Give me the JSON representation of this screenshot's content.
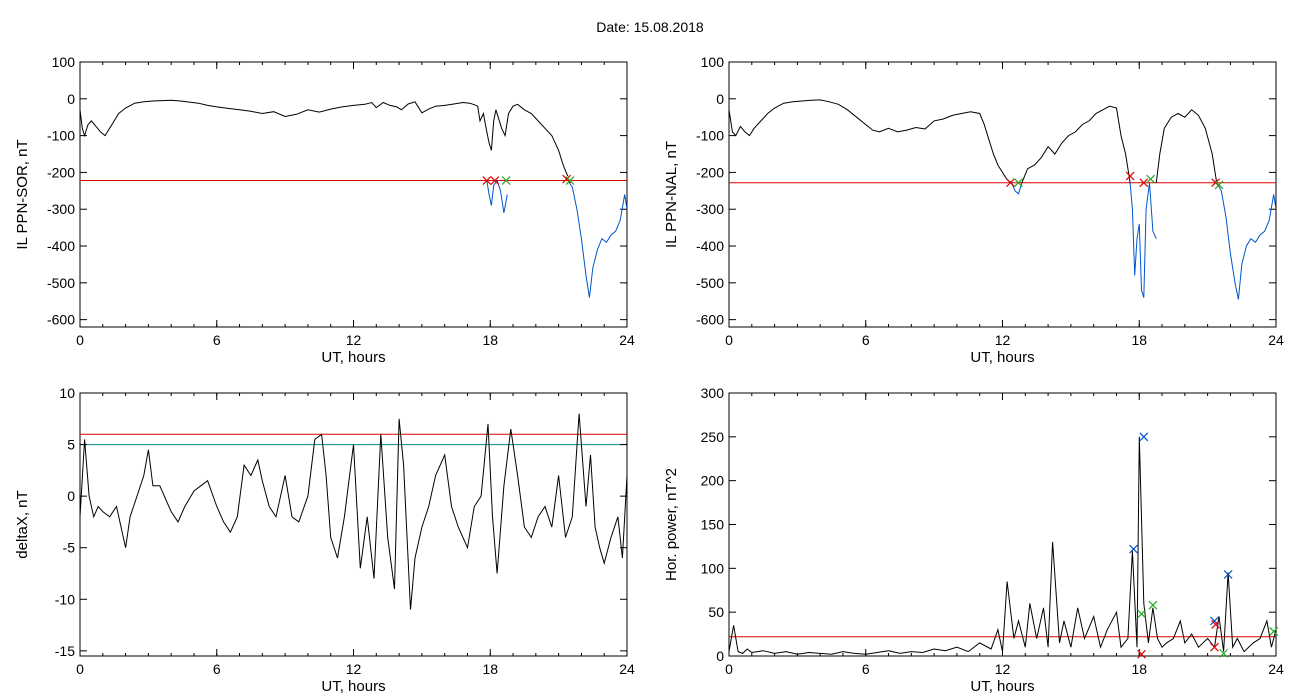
{
  "page": {
    "date_label": "Date:  15.08.2018"
  },
  "colors": {
    "trace": "#000000",
    "threshold": "#dd0000",
    "cyan_line": "#008b8b",
    "blue": "#0055cc",
    "green": "#22aa22",
    "red_mark": "#dd0000"
  },
  "chart_data": [
    {
      "id": "il-ppn-sor",
      "type": "line",
      "title": "",
      "xlabel": "UT, hours",
      "ylabel": "IL PPN-SOR, nT",
      "xlim": [
        0,
        24
      ],
      "ylim": [
        -620,
        100
      ],
      "xticks": [
        0,
        6,
        12,
        18,
        24
      ],
      "yticks": [
        100,
        0,
        -100,
        -200,
        -300,
        -400,
        -500,
        -600
      ],
      "grid": false,
      "thresholds": [
        {
          "value": -222,
          "color": "#dd0000"
        }
      ],
      "series": [
        {
          "color": "#000000",
          "x": [
            0,
            0.1,
            0.2,
            0.35,
            0.5,
            0.7,
            0.9,
            1.1,
            1.3,
            1.5,
            1.7,
            2.0,
            2.4,
            2.8,
            3.2,
            3.6,
            4.0,
            4.4,
            4.8,
            5.2,
            5.6,
            6.0,
            6.5,
            7.0,
            7.5,
            8.0,
            8.5,
            9.0,
            9.5,
            10.0,
            10.5,
            11.0,
            11.5,
            12.0,
            12.5,
            12.8,
            13.0,
            13.3,
            13.6,
            13.9,
            14.1,
            14.4,
            14.7,
            15.0,
            15.3,
            15.6,
            16.0,
            16.4,
            16.8,
            17.1,
            17.3,
            17.45,
            17.55,
            17.7,
            17.85,
            17.95,
            18.05,
            18.15,
            18.25,
            18.35,
            18.5,
            18.65,
            18.8,
            19.0,
            19.2,
            19.5,
            19.8,
            20.1,
            20.4,
            20.7,
            21.0,
            21.2,
            21.4
          ],
          "y": [
            -30,
            -80,
            -100,
            -70,
            -60,
            -75,
            -90,
            -100,
            -80,
            -60,
            -40,
            -25,
            -12,
            -8,
            -6,
            -5,
            -4,
            -6,
            -9,
            -12,
            -18,
            -22,
            -26,
            -30,
            -34,
            -40,
            -35,
            -48,
            -42,
            -30,
            -36,
            -28,
            -22,
            -18,
            -15,
            -10,
            -24,
            -10,
            -18,
            -22,
            -30,
            -14,
            -8,
            -38,
            -28,
            -20,
            -18,
            -14,
            -10,
            -12,
            -16,
            -20,
            -60,
            -40,
            -90,
            -120,
            -140,
            -60,
            -30,
            -50,
            -80,
            -100,
            -40,
            -20,
            -15,
            -30,
            -40,
            -60,
            -80,
            -100,
            -140,
            -180,
            -210
          ]
        },
        {
          "color": "#0055cc",
          "x": [
            17.85,
            17.95,
            18.05,
            18.15,
            18.3,
            18.45,
            18.6,
            18.75
          ],
          "y": [
            -222,
            -260,
            -290,
            -235,
            -222,
            -250,
            -310,
            -260
          ]
        },
        {
          "color": "#0055cc",
          "x": [
            21.4,
            21.6,
            21.8,
            22.0,
            22.2,
            22.35,
            22.5,
            22.7,
            22.9,
            23.1,
            23.3,
            23.5,
            23.7,
            23.9,
            24.0
          ],
          "y": [
            -222,
            -240,
            -300,
            -380,
            -480,
            -540,
            -460,
            -410,
            -380,
            -390,
            -370,
            -360,
            -330,
            -260,
            -300
          ]
        }
      ],
      "markers": [
        {
          "x": 17.85,
          "y": -222,
          "color": "#dd0000"
        },
        {
          "x": 18.2,
          "y": -222,
          "color": "#dd0000"
        },
        {
          "x": 18.7,
          "y": -222,
          "color": "#22aa22"
        },
        {
          "x": 21.35,
          "y": -218,
          "color": "#dd0000"
        },
        {
          "x": 21.5,
          "y": -222,
          "color": "#22aa22"
        }
      ]
    },
    {
      "id": "il-ppn-nal",
      "type": "line",
      "title": "",
      "xlabel": "UT, hours",
      "ylabel": "IL PPN-NAL, nT",
      "xlim": [
        0,
        24
      ],
      "ylim": [
        -620,
        100
      ],
      "xticks": [
        0,
        6,
        12,
        18,
        24
      ],
      "yticks": [
        100,
        0,
        -100,
        -200,
        -300,
        -400,
        -500,
        -600
      ],
      "grid": false,
      "thresholds": [
        {
          "value": -228,
          "color": "#dd0000"
        }
      ],
      "series": [
        {
          "color": "#000000",
          "x": [
            0,
            0.15,
            0.3,
            0.5,
            0.7,
            0.9,
            1.1,
            1.4,
            1.7,
            2.0,
            2.4,
            2.8,
            3.2,
            3.6,
            4.0,
            4.4,
            4.8,
            5.2,
            5.6,
            6.0,
            6.3,
            6.6,
            7.0,
            7.4,
            7.8,
            8.2,
            8.6,
            9.0,
            9.4,
            9.8,
            10.2,
            10.6,
            11.0,
            11.2,
            11.4,
            11.6,
            11.8,
            12.0,
            12.2,
            12.4
          ],
          "y": [
            -30,
            -90,
            -100,
            -75,
            -90,
            -100,
            -80,
            -60,
            -40,
            -25,
            -12,
            -8,
            -6,
            -4,
            -3,
            -8,
            -15,
            -30,
            -50,
            -70,
            -85,
            -90,
            -80,
            -90,
            -85,
            -78,
            -82,
            -60,
            -55,
            -45,
            -40,
            -35,
            -40,
            -70,
            -110,
            -150,
            -180,
            -200,
            -220,
            -228
          ]
        },
        {
          "color": "#0055cc",
          "x": [
            12.4,
            12.55,
            12.7,
            12.85
          ],
          "y": [
            -228,
            -250,
            -258,
            -228
          ]
        },
        {
          "color": "#000000",
          "x": [
            12.85,
            13.1,
            13.4,
            13.7,
            14.0,
            14.3,
            14.6,
            14.9,
            15.2,
            15.5,
            15.8,
            16.1,
            16.4,
            16.7,
            17.0,
            17.2,
            17.4,
            17.6
          ],
          "y": [
            -228,
            -190,
            -180,
            -160,
            -130,
            -150,
            -120,
            -100,
            -90,
            -70,
            -60,
            -40,
            -30,
            -20,
            -25,
            -100,
            -150,
            -228
          ]
        },
        {
          "color": "#0055cc",
          "x": [
            17.6,
            17.7,
            17.8,
            17.9,
            18.0,
            18.1,
            18.2,
            18.3,
            18.45,
            18.6,
            18.75
          ],
          "y": [
            -228,
            -300,
            -480,
            -380,
            -340,
            -520,
            -540,
            -300,
            -228,
            -360,
            -380
          ]
        },
        {
          "color": "#000000",
          "x": [
            18.75,
            18.9,
            19.1,
            19.4,
            19.7,
            20.0,
            20.3,
            20.6,
            20.9,
            21.2,
            21.4
          ],
          "y": [
            -228,
            -150,
            -80,
            -50,
            -40,
            -50,
            -30,
            -45,
            -80,
            -150,
            -228
          ]
        },
        {
          "color": "#0055cc",
          "x": [
            21.4,
            21.6,
            21.8,
            22.0,
            22.2,
            22.35,
            22.5,
            22.7,
            22.9,
            23.1,
            23.3,
            23.5,
            23.7,
            23.9,
            24.0
          ],
          "y": [
            -228,
            -250,
            -320,
            -420,
            -500,
            -545,
            -450,
            -400,
            -380,
            -390,
            -370,
            -360,
            -330,
            -260,
            -300
          ]
        }
      ],
      "markers": [
        {
          "x": 12.35,
          "y": -228,
          "color": "#dd0000"
        },
        {
          "x": 12.7,
          "y": -228,
          "color": "#22aa22"
        },
        {
          "x": 17.6,
          "y": -210,
          "color": "#dd0000"
        },
        {
          "x": 18.2,
          "y": -228,
          "color": "#dd0000"
        },
        {
          "x": 18.5,
          "y": -218,
          "color": "#22aa22"
        },
        {
          "x": 21.35,
          "y": -228,
          "color": "#dd0000"
        },
        {
          "x": 21.5,
          "y": -234,
          "color": "#22aa22"
        }
      ]
    },
    {
      "id": "delta-x",
      "type": "line",
      "title": "",
      "xlabel": "UT, hours",
      "ylabel": "deltaX, nT",
      "xlim": [
        0,
        24
      ],
      "ylim": [
        -15.5,
        10
      ],
      "xticks": [
        0,
        6,
        12,
        18,
        24
      ],
      "yticks": [
        10,
        5,
        0,
        -5,
        -10,
        -15
      ],
      "grid": false,
      "thresholds": [
        {
          "value": 6,
          "color": "#dd0000"
        },
        {
          "value": 5,
          "color": "#008b8b"
        }
      ],
      "series": [
        {
          "color": "#000000",
          "x": [
            0,
            0.2,
            0.4,
            0.6,
            0.8,
            1.0,
            1.3,
            1.6,
            2.0,
            2.2,
            2.5,
            2.8,
            3.0,
            3.2,
            3.5,
            3.8,
            4.0,
            4.3,
            4.6,
            5.0,
            5.3,
            5.6,
            6.0,
            6.3,
            6.6,
            6.9,
            7.2,
            7.5,
            7.8,
            8.0,
            8.3,
            8.6,
            9.0,
            9.3,
            9.6,
            10.0,
            10.3,
            10.6,
            10.8,
            11.0,
            11.3,
            11.6,
            12.0,
            12.3,
            12.6,
            12.9,
            13.2,
            13.5,
            13.8,
            14.0,
            14.2,
            14.5,
            14.7,
            15.0,
            15.3,
            15.6,
            16.0,
            16.3,
            16.6,
            17.0,
            17.3,
            17.6,
            17.9,
            18.1,
            18.3,
            18.6,
            18.9,
            19.2,
            19.5,
            19.8,
            20.1,
            20.4,
            20.7,
            21.0,
            21.3,
            21.6,
            21.9,
            22.2,
            22.4,
            22.6,
            22.8,
            23.0,
            23.3,
            23.6,
            23.8,
            24.0
          ],
          "y": [
            -2,
            5.5,
            0,
            -2,
            -1,
            -1.5,
            -2,
            -1,
            -5,
            -2,
            0,
            2,
            4.5,
            1,
            1,
            -0.5,
            -1.5,
            -2.5,
            -1,
            0.5,
            1,
            1.5,
            -1,
            -2.5,
            -3.5,
            -2,
            3,
            2,
            3.5,
            1.5,
            -1,
            -2,
            2,
            -2,
            -2.5,
            0,
            5.5,
            6,
            2,
            -4,
            -6,
            -2,
            5,
            -7,
            -2,
            -8,
            6,
            -4,
            -9,
            7.5,
            3,
            -11,
            -6,
            -3,
            -1,
            2,
            4,
            -1,
            -3,
            -5,
            -1,
            0,
            7,
            -2,
            -7.5,
            1,
            6.5,
            2,
            -3,
            -4,
            -2,
            -1,
            -3,
            2,
            -4,
            -2,
            8,
            -1,
            4,
            -3,
            -5,
            -6.5,
            -4,
            -2,
            -6,
            2
          ]
        }
      ],
      "markers": []
    },
    {
      "id": "hor-power",
      "type": "line",
      "title": "",
      "xlabel": "UT, hours",
      "ylabel": "Hor. power, nT^2",
      "xlim": [
        0,
        24
      ],
      "ylim": [
        0,
        300
      ],
      "xticks": [
        0,
        6,
        12,
        18,
        24
      ],
      "yticks": [
        300,
        250,
        200,
        150,
        100,
        50,
        0
      ],
      "grid": false,
      "thresholds": [
        {
          "value": 22,
          "color": "#dd0000"
        }
      ],
      "series": [
        {
          "color": "#000000",
          "x": [
            0,
            0.2,
            0.4,
            0.6,
            0.8,
            1.0,
            1.5,
            2.0,
            2.5,
            3.0,
            3.5,
            4.0,
            4.5,
            5.0,
            5.5,
            6.0,
            6.5,
            7.0,
            7.5,
            8.0,
            8.5,
            9.0,
            9.5,
            10.0,
            10.5,
            11.0,
            11.5,
            11.8,
            12.0,
            12.2,
            12.5,
            12.7,
            13.0,
            13.2,
            13.5,
            13.8,
            14.0,
            14.2,
            14.5,
            14.7,
            15.0,
            15.3,
            15.6,
            16.0,
            16.3,
            16.6,
            17.0,
            17.2,
            17.5,
            17.7,
            17.9,
            18.0,
            18.2,
            18.4,
            18.6,
            18.8,
            19.0,
            19.2,
            19.5,
            19.8,
            20.0,
            20.3,
            20.6,
            21.0,
            21.3,
            21.5,
            21.7,
            21.9,
            22.1,
            22.3,
            22.6,
            23.0,
            23.3,
            23.6,
            23.8,
            24.0
          ],
          "y": [
            5,
            35,
            5,
            3,
            8,
            4,
            6,
            3,
            5,
            2,
            4,
            3,
            2,
            5,
            3,
            2,
            4,
            6,
            3,
            5,
            4,
            8,
            6,
            10,
            5,
            15,
            8,
            30,
            5,
            85,
            20,
            40,
            10,
            60,
            20,
            55,
            10,
            130,
            15,
            40,
            10,
            55,
            20,
            45,
            10,
            30,
            50,
            10,
            20,
            120,
            10,
            250,
            60,
            15,
            55,
            20,
            10,
            15,
            20,
            40,
            15,
            25,
            10,
            20,
            10,
            45,
            5,
            95,
            10,
            20,
            5,
            15,
            20,
            40,
            10,
            30
          ]
        }
      ],
      "markers": [
        {
          "x": 17.75,
          "y": 122,
          "color": "#0055cc"
        },
        {
          "x": 18.2,
          "y": 250,
          "color": "#0055cc"
        },
        {
          "x": 18.1,
          "y": 48,
          "color": "#22aa22"
        },
        {
          "x": 18.6,
          "y": 58,
          "color": "#22aa22"
        },
        {
          "x": 18.1,
          "y": 2,
          "color": "#dd0000"
        },
        {
          "x": 21.3,
          "y": 40,
          "color": "#0055cc"
        },
        {
          "x": 21.35,
          "y": 36,
          "color": "#dd0000"
        },
        {
          "x": 21.3,
          "y": 10,
          "color": "#dd0000"
        },
        {
          "x": 21.9,
          "y": 93,
          "color": "#0055cc"
        },
        {
          "x": 21.7,
          "y": 3,
          "color": "#22aa22"
        },
        {
          "x": 23.9,
          "y": 28,
          "color": "#22aa22"
        }
      ]
    }
  ]
}
